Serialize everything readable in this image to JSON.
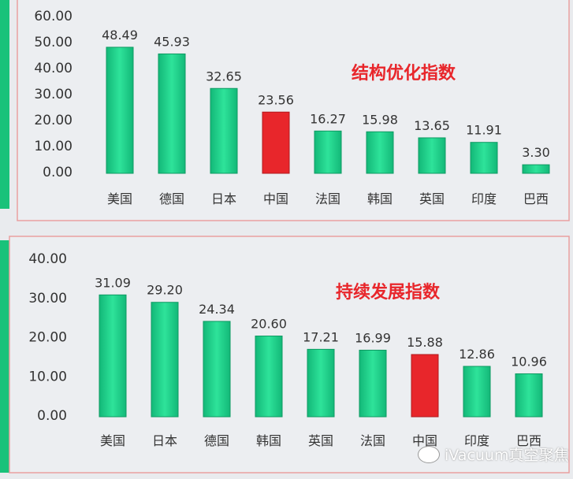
{
  "chart_data": [
    {
      "type": "bar",
      "title": "结构优化指数",
      "categories": [
        "美国",
        "德国",
        "日本",
        "中国",
        "法国",
        "韩国",
        "英国",
        "印度",
        "巴西"
      ],
      "values": [
        48.49,
        45.93,
        32.65,
        23.56,
        16.27,
        15.98,
        13.65,
        11.91,
        3.3
      ],
      "highlight": "中国",
      "ylim": [
        0,
        60
      ],
      "yticks": [
        "0.00",
        "10.00",
        "20.00",
        "30.00",
        "40.00",
        "50.00",
        "60.00"
      ],
      "grid": false,
      "xlabel": "",
      "ylabel": ""
    },
    {
      "type": "bar",
      "title": "持续发展指数",
      "categories": [
        "美国",
        "日本",
        "德国",
        "韩国",
        "英国",
        "法国",
        "中国",
        "印度",
        "巴西"
      ],
      "values": [
        31.09,
        29.2,
        24.34,
        20.6,
        17.21,
        16.99,
        15.88,
        12.86,
        10.96
      ],
      "highlight": "中国",
      "ylim": [
        0,
        40
      ],
      "yticks": [
        "0.00",
        "10.00",
        "20.00",
        "30.00",
        "40.00"
      ],
      "grid": false,
      "xlabel": "",
      "ylabel": ""
    }
  ],
  "colors": {
    "bar": "#1fd08a",
    "highlight": "#e8262b",
    "title": "#e8262b",
    "border": "#e9a0a0"
  },
  "watermark": "iVacuum真空聚焦"
}
